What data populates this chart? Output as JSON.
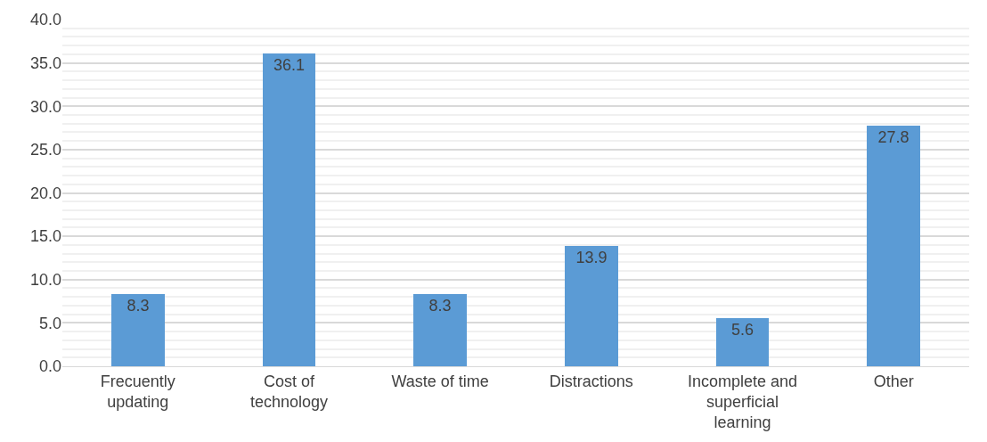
{
  "chart_data": {
    "type": "bar",
    "categories": [
      "Frecuently updating",
      "Cost of technology",
      "Waste of time",
      "Distractions",
      "Incomplete and superficial learning",
      "Other"
    ],
    "values": [
      8.3,
      36.1,
      8.3,
      13.9,
      5.6,
      27.8
    ],
    "color": "#5b9bd5",
    "ylim": [
      0,
      40
    ],
    "yticks": [
      {
        "value": 0,
        "label": "0.0"
      },
      {
        "value": 5,
        "label": "5.0"
      },
      {
        "value": 10,
        "label": "10.0"
      },
      {
        "value": 15,
        "label": "15.0"
      },
      {
        "value": 20,
        "label": "20.0"
      },
      {
        "value": 25,
        "label": "25.0"
      },
      {
        "value": 30,
        "label": "30.0"
      },
      {
        "value": 35,
        "label": "35.0"
      },
      {
        "value": 40,
        "label": "40.0"
      }
    ],
    "grid": "y",
    "data_labels": true
  }
}
